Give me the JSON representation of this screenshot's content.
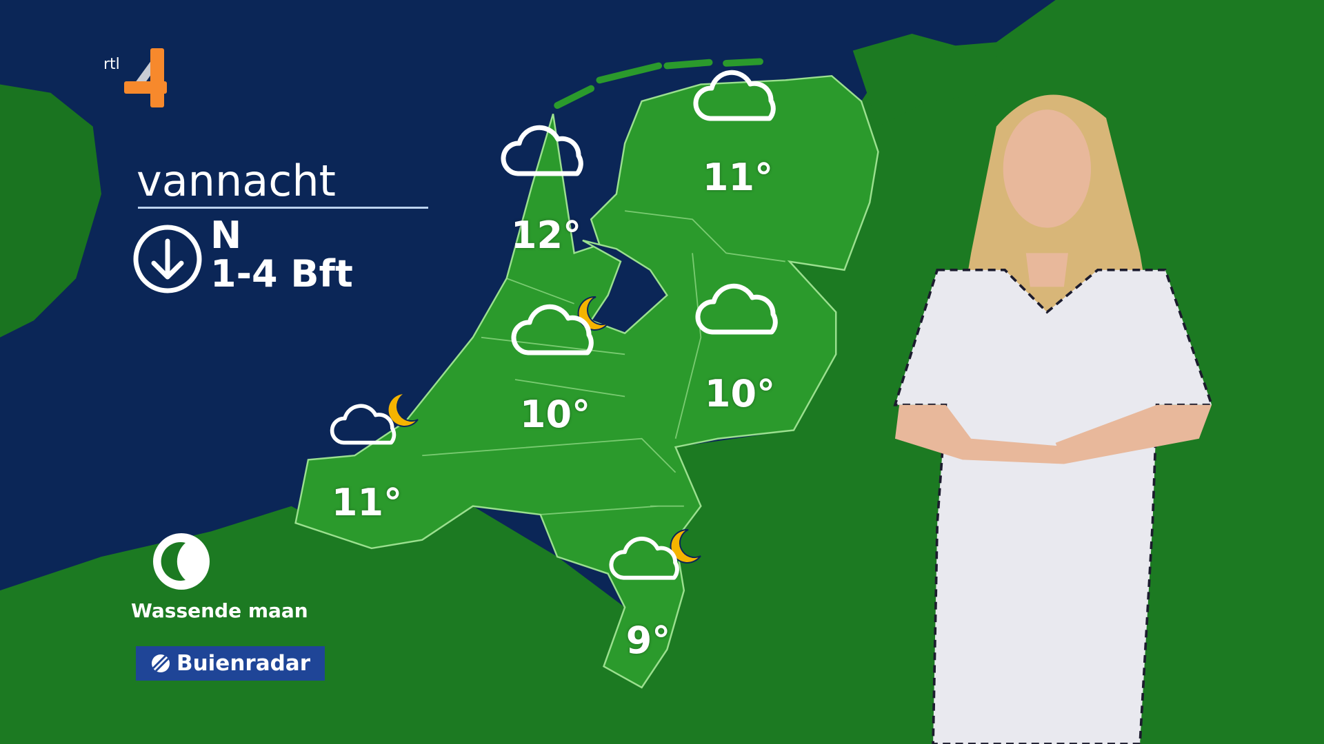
{
  "broadcast": {
    "channel_logo": "RTL 4",
    "period": "vannacht",
    "wind": {
      "icon": "arrow-down-circle-icon",
      "direction": "N",
      "force": "1-4 Bft"
    },
    "moon": {
      "icon": "waxing-moon-icon",
      "label": "Wassende maan"
    },
    "sponsor": {
      "label": "Buienradar",
      "color": "#1f4597"
    }
  },
  "forecast": [
    {
      "region": "noord-holland",
      "symbol": "cloud",
      "temp": "12°"
    },
    {
      "region": "friesland-groningen",
      "symbol": "cloud",
      "temp": "11°"
    },
    {
      "region": "midden",
      "symbol": "cloud-moon",
      "temp": "10°"
    },
    {
      "region": "oost",
      "symbol": "cloud",
      "temp": "10°"
    },
    {
      "region": "zeeland",
      "symbol": "cloud-moon",
      "temp": "11°"
    },
    {
      "region": "limburg",
      "symbol": "cloud-moon",
      "temp": "9°"
    }
  ],
  "colors": {
    "sea": "#0b2657",
    "land": "#1c7a22",
    "netherlands": "#2b9a2c",
    "border": "#9be08f",
    "moon": "#f5b400",
    "logo_orange": "#f7892c"
  }
}
